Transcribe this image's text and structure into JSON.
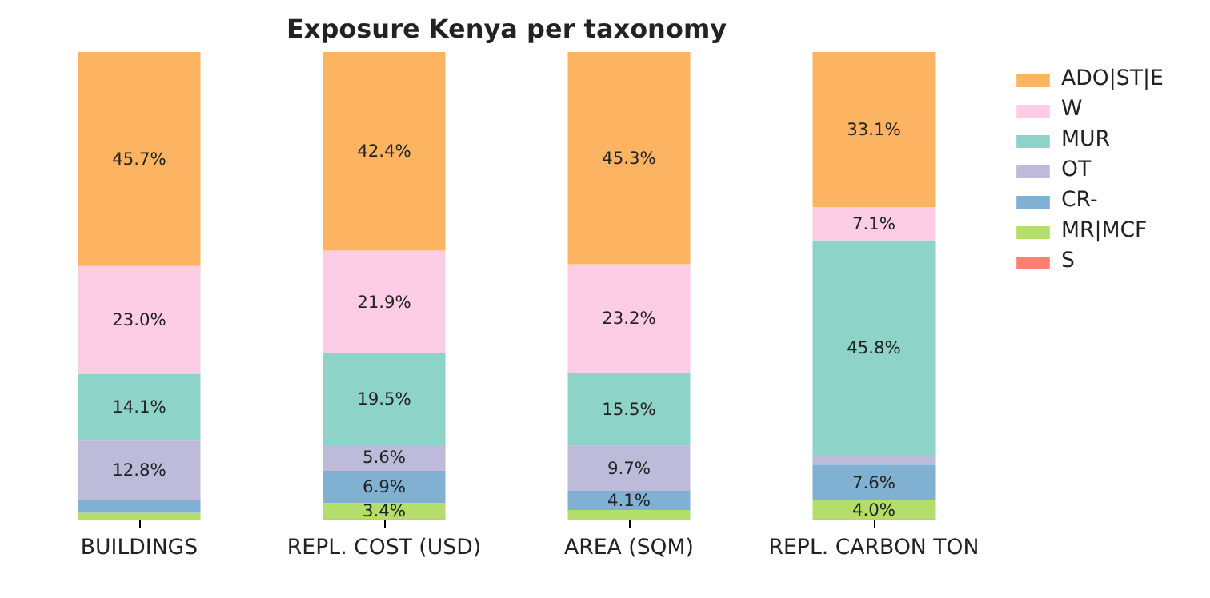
{
  "chart_data": {
    "type": "bar",
    "title": "Exposure Kenya per taxonomy",
    "stacked": true,
    "legend": "right",
    "grid": false,
    "categories": [
      "BUILDINGS",
      "REPL. COST (USD)",
      "AREA (SQM)",
      "REPL. CARBON TON"
    ],
    "series": [
      {
        "name": "S",
        "color": "#fb8072",
        "values": [
          0,
          0.3,
          0,
          0.3
        ],
        "value_labels": [
          null,
          null,
          null,
          null
        ]
      },
      {
        "name": "MR|MCF",
        "color": "#b3de69",
        "values": [
          1.6,
          3.4,
          2.2,
          4.0
        ],
        "value_labels": [
          null,
          "3.4%",
          null,
          "4.0%"
        ]
      },
      {
        "name": "CR-",
        "color": "#80b1d3",
        "values": [
          2.8,
          6.9,
          4.1,
          7.6
        ],
        "value_labels": [
          null,
          "6.9%",
          "4.1%",
          "7.6%"
        ]
      },
      {
        "name": "OT",
        "color": "#bebada",
        "values": [
          12.8,
          5.6,
          9.7,
          2.1
        ],
        "value_labels": [
          "12.8%",
          "5.6%",
          "9.7%",
          null
        ]
      },
      {
        "name": "MUR",
        "color": "#8dd3c7",
        "values": [
          14.1,
          19.5,
          15.5,
          45.8
        ],
        "value_labels": [
          "14.1%",
          "19.5%",
          "15.5%",
          "45.8%"
        ]
      },
      {
        "name": "W",
        "color": "#fccde5",
        "values": [
          23.0,
          21.9,
          23.2,
          7.1
        ],
        "value_labels": [
          "23.0%",
          "21.9%",
          "23.2%",
          "7.1%"
        ]
      },
      {
        "name": "ADO|ST|E",
        "color": "#fdb462",
        "values": [
          45.7,
          42.4,
          45.3,
          33.1
        ],
        "value_labels": [
          "45.7%",
          "42.4%",
          "45.3%",
          "33.1%"
        ]
      }
    ]
  }
}
